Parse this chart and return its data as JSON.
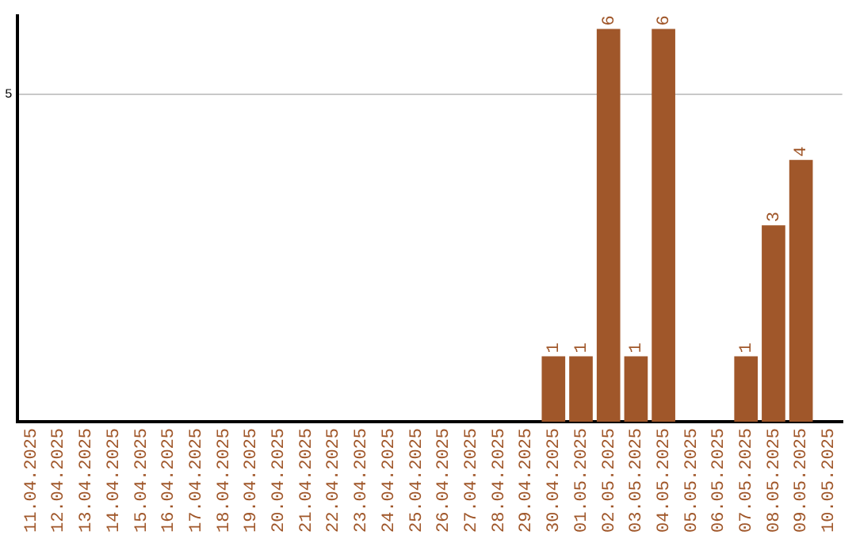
{
  "chart_data": {
    "type": "bar",
    "categories": [
      "11.04.2025",
      "12.04.2025",
      "13.04.2025",
      "14.04.2025",
      "15.04.2025",
      "16.04.2025",
      "17.04.2025",
      "18.04.2025",
      "19.04.2025",
      "20.04.2025",
      "21.04.2025",
      "22.04.2025",
      "23.04.2025",
      "24.04.2025",
      "25.04.2025",
      "26.04.2025",
      "27.04.2025",
      "28.04.2025",
      "29.04.2025",
      "30.04.2025",
      "01.05.2025",
      "02.05.2025",
      "03.05.2025",
      "04.05.2025",
      "05.05.2025",
      "06.05.2025",
      "07.05.2025",
      "08.05.2025",
      "09.05.2025",
      "10.05.2025"
    ],
    "values": [
      null,
      null,
      null,
      null,
      null,
      null,
      null,
      null,
      null,
      null,
      null,
      null,
      null,
      null,
      null,
      null,
      null,
      null,
      null,
      1,
      1,
      6,
      1,
      6,
      null,
      null,
      1,
      3,
      4,
      null
    ],
    "color": "#a0572a",
    "ylim": [
      0,
      6.2
    ],
    "yticks": [
      5
    ],
    "grid": "y",
    "legend": false,
    "data_labels": true
  }
}
